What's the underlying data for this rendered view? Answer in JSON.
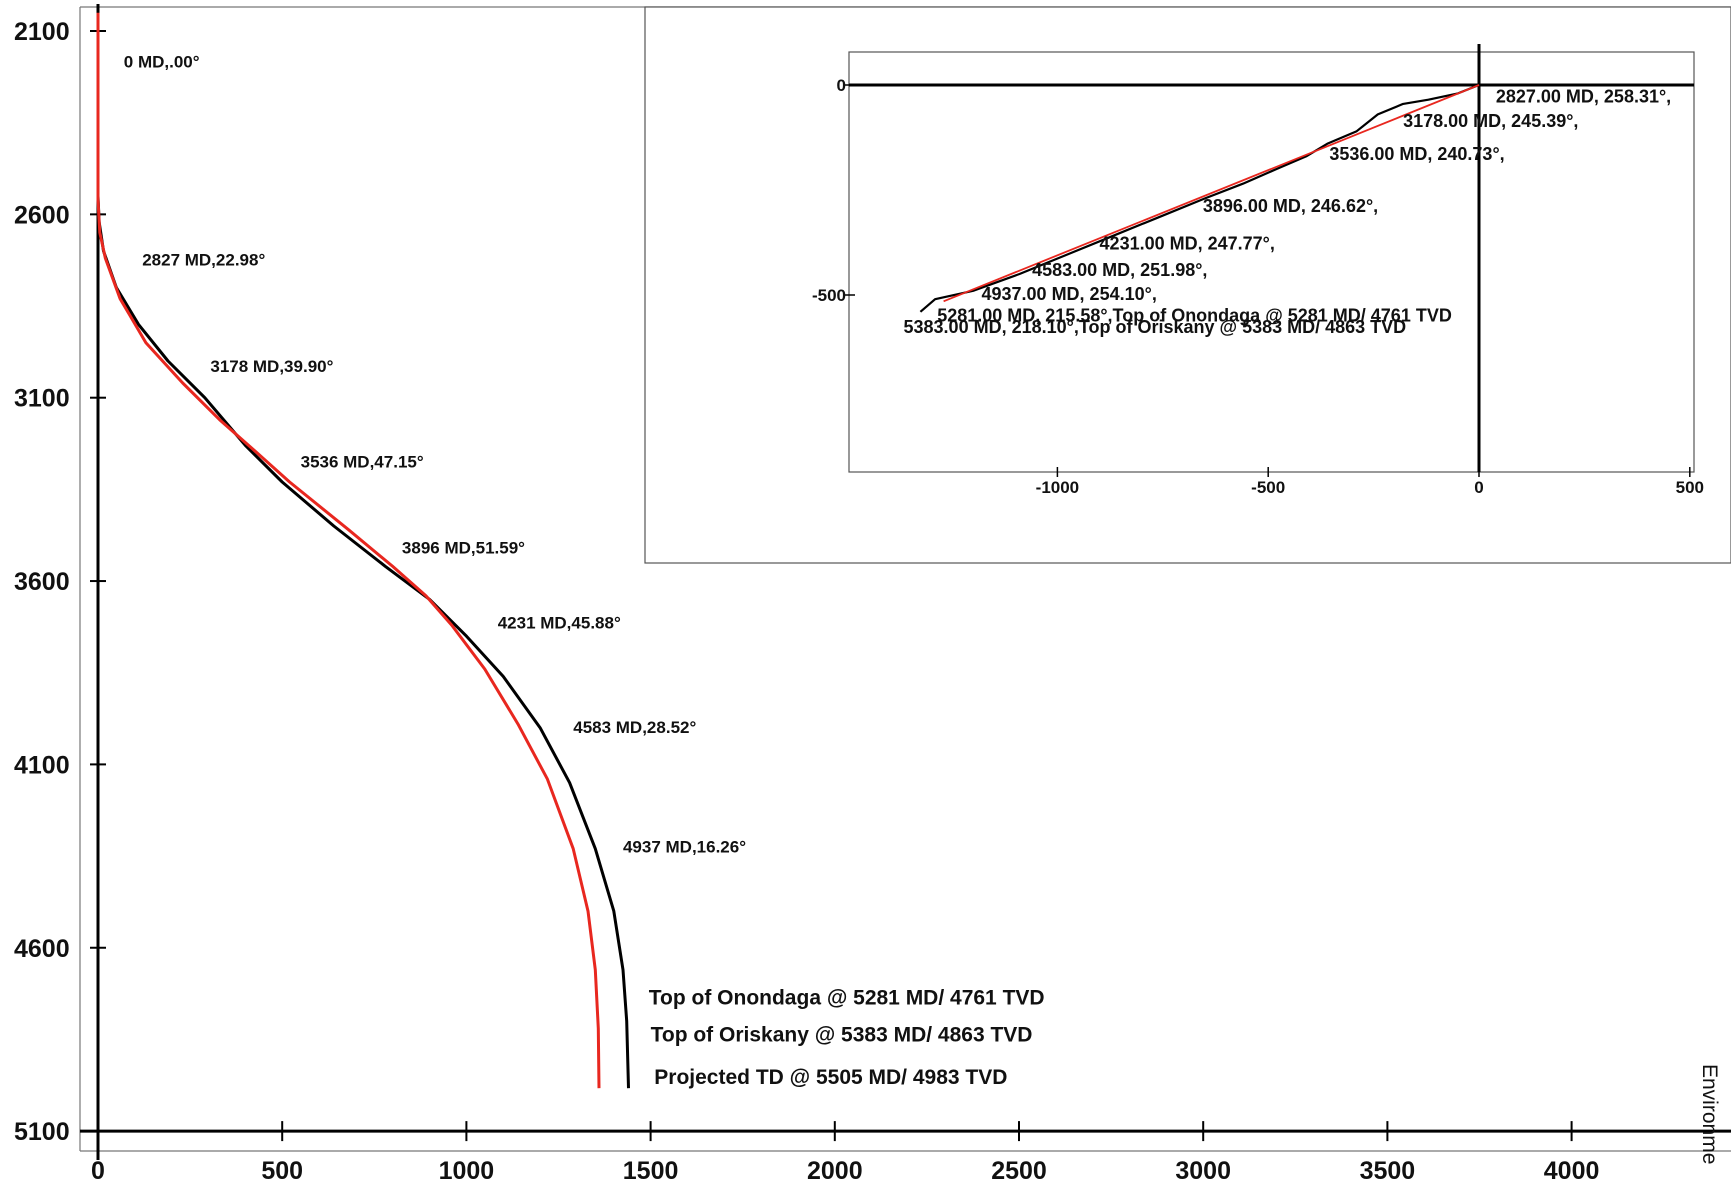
{
  "chart_data": [
    {
      "type": "line",
      "title": "",
      "xlabel": "",
      "ylabel": "",
      "xlim": [
        -20,
        4250
      ],
      "ylim": [
        5100,
        2050
      ],
      "x_ticks": [
        0,
        500,
        1000,
        1500,
        2000,
        2500,
        3000,
        3500,
        4000
      ],
      "y_ticks": [
        2100,
        2600,
        3100,
        3600,
        4100,
        4600,
        5100
      ],
      "grid": false,
      "series": [
        {
          "color": "#000000",
          "points": [
            [
              0,
              2050
            ],
            [
              0,
              2550
            ],
            [
              3,
              2620
            ],
            [
              15,
              2700
            ],
            [
              50,
              2800
            ],
            [
              110,
              2900
            ],
            [
              190,
              3000
            ],
            [
              290,
              3100
            ],
            [
              400,
              3230
            ],
            [
              500,
              3330
            ],
            [
              640,
              3450
            ],
            [
              780,
              3560
            ],
            [
              900,
              3650
            ],
            [
              1000,
              3750
            ],
            [
              1100,
              3860
            ],
            [
              1200,
              4000
            ],
            [
              1280,
              4150
            ],
            [
              1350,
              4330
            ],
            [
              1400,
              4500
            ],
            [
              1425,
              4660
            ],
            [
              1435,
              4800
            ],
            [
              1440,
              4983
            ]
          ]
        },
        {
          "color": "#e8271f",
          "points": [
            [
              0,
              2050
            ],
            [
              0,
              2560
            ],
            [
              5,
              2650
            ],
            [
              20,
              2720
            ],
            [
              60,
              2830
            ],
            [
              130,
              2950
            ],
            [
              230,
              3060
            ],
            [
              330,
              3160
            ],
            [
              420,
              3240
            ],
            [
              520,
              3330
            ],
            [
              680,
              3460
            ],
            [
              800,
              3560
            ],
            [
              890,
              3640
            ],
            [
              960,
              3720
            ],
            [
              1050,
              3840
            ],
            [
              1140,
              3990
            ],
            [
              1220,
              4140
            ],
            [
              1290,
              4330
            ],
            [
              1330,
              4500
            ],
            [
              1350,
              4660
            ],
            [
              1358,
              4820
            ],
            [
              1360,
              4983
            ]
          ]
        }
      ],
      "annotations": [
        {
          "text": "0 MD,.00°",
          "x": 70,
          "y": 2200
        },
        {
          "text": "2827 MD,22.98°",
          "x": 120,
          "y": 2740
        },
        {
          "text": "3178 MD,39.90°",
          "x": 305,
          "y": 3030
        },
        {
          "text": "3536 MD,47.15°",
          "x": 550,
          "y": 3290
        },
        {
          "text": "3896 MD,51.59°",
          "x": 825,
          "y": 3525
        },
        {
          "text": "4231 MD,45.88°",
          "x": 1085,
          "y": 3730
        },
        {
          "text": "4583 MD,28.52°",
          "x": 1290,
          "y": 4015
        },
        {
          "text": "4937 MD,16.26°",
          "x": 1425,
          "y": 4340
        },
        {
          "text": "Top of Onondaga @ 5281 MD/ 4761 TVD",
          "x": 1495,
          "y": 4755
        },
        {
          "text": "Top of Oriskany @ 5383 MD/ 4863 TVD",
          "x": 1500,
          "y": 4855
        },
        {
          "text": "Projected TD @ 5505 MD/ 4983 TVD",
          "x": 1510,
          "y": 4972
        }
      ]
    },
    {
      "type": "line",
      "title": "",
      "xlabel": "",
      "ylabel": "",
      "xlim": [
        -1500,
        500
      ],
      "ylim": [
        -920,
        80
      ],
      "x_ticks": [
        -1000,
        -500,
        0,
        500
      ],
      "y_ticks": [
        0,
        -500
      ],
      "grid": false,
      "series": [
        {
          "color": "#000000",
          "points": [
            [
              0,
              0
            ],
            [
              -50,
              -20
            ],
            [
              -120,
              -35
            ],
            [
              -180,
              -45
            ],
            [
              -240,
              -70
            ],
            [
              -290,
              -110
            ],
            [
              -360,
              -140
            ],
            [
              -410,
              -170
            ],
            [
              -480,
              -200
            ],
            [
              -560,
              -235
            ],
            [
              -650,
              -270
            ],
            [
              -760,
              -315
            ],
            [
              -870,
              -360
            ],
            [
              -980,
              -405
            ],
            [
              -1090,
              -450
            ],
            [
              -1200,
              -490
            ],
            [
              -1290,
              -510
            ],
            [
              -1325,
              -540
            ]
          ]
        },
        {
          "color": "#e8271f",
          "points": [
            [
              0,
              0
            ],
            [
              -1270,
              -515
            ]
          ]
        }
      ],
      "annotations": [
        {
          "text": "2827.00 MD, 258.31°,",
          "x": 40,
          "y": -42
        },
        {
          "text": "3178.00 MD, 245.39°,",
          "x": -180,
          "y": -100
        },
        {
          "text": "3536.00 MD, 240.73°,",
          "x": -355,
          "y": -178
        },
        {
          "text": "3896.00 MD, 246.62°,",
          "x": -655,
          "y": -302
        },
        {
          "text": "4231.00 MD, 247.77°,",
          "x": -900,
          "y": -392
        },
        {
          "text": "4583.00 MD, 251.98°,",
          "x": -1060,
          "y": -455
        },
        {
          "text": "4937.00 MD, 254.10°,",
          "x": -1180,
          "y": -512
        },
        {
          "text": "5281.00 MD, 215.58°,Top of Onondaga @ 5281 MD/ 4761 TVD",
          "x": -1285,
          "y": -563
        },
        {
          "text": "5383.00 MD, 218.10°,Top of Oriskany @ 5383 MD/ 4863 TVD",
          "x": -1365,
          "y": -590
        }
      ]
    }
  ],
  "side_text": "Environme"
}
